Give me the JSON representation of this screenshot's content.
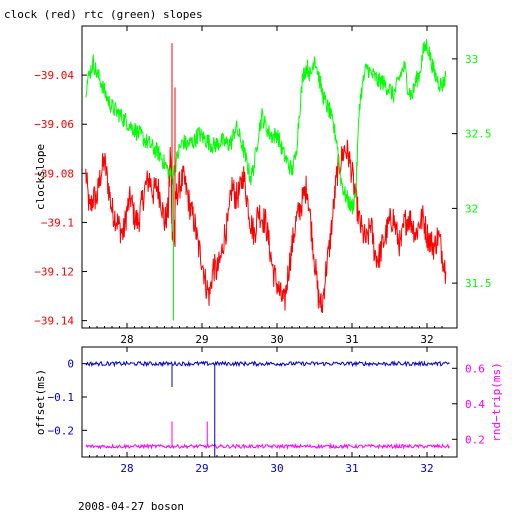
{
  "page": {
    "title": "clock (red) rtc (green) slopes",
    "footer": "2008-04-27 boson"
  },
  "colors": {
    "red": "#ff0000",
    "green": "#00ff00",
    "blue": "#0000cc",
    "magenta": "#ff00ff",
    "axis": "#000000"
  },
  "chart_data": [
    {
      "type": "line",
      "title": "clock (red) rtc (green) slopes",
      "ylabel": "clockslope",
      "ylabel_right": "",
      "xlim": [
        27.4,
        32.4
      ],
      "ylim": [
        -39.143,
        -39.02
      ],
      "ylim_right": [
        31.2,
        33.22
      ],
      "x_ticks": [
        28,
        29,
        30,
        31,
        32
      ],
      "x_tick_labels": [
        "28",
        "29",
        "30",
        "31",
        "32"
      ],
      "y_ticks": [
        -39.04,
        -39.06,
        -39.08,
        -39.1,
        -39.12,
        -39.14
      ],
      "y_tick_labels": [
        "−39.04",
        "−39.06",
        "−39.08",
        "−39.1",
        "−39.12",
        "−39.14"
      ],
      "y_right_ticks": [
        33,
        32.5,
        32,
        31.5
      ],
      "y_right_tick_labels": [
        "33",
        "32.5",
        "32",
        "31.5"
      ],
      "series": [
        {
          "axis": "left",
          "color": "#ff0000",
          "x": [
            27.45,
            27.5,
            27.55,
            27.6,
            27.65,
            27.7,
            27.75,
            27.8,
            27.85,
            27.9,
            27.95,
            28.0,
            28.05,
            28.1,
            28.15,
            28.2,
            28.25,
            28.3,
            28.35,
            28.4,
            28.45,
            28.5,
            28.55,
            28.58,
            28.6,
            28.62,
            28.65,
            28.7,
            28.75,
            28.8,
            28.85,
            28.9,
            28.95,
            29.0,
            29.05,
            29.1,
            29.15,
            29.2,
            29.25,
            29.3,
            29.35,
            29.4,
            29.45,
            29.5,
            29.55,
            29.6,
            29.65,
            29.7,
            29.75,
            29.8,
            29.85,
            29.9,
            29.95,
            30.0,
            30.05,
            30.1,
            30.15,
            30.2,
            30.25,
            30.3,
            30.35,
            30.4,
            30.45,
            30.5,
            30.55,
            30.6,
            30.65,
            30.7,
            30.75,
            30.8,
            30.85,
            30.9,
            30.95,
            31.0,
            31.05,
            31.1,
            31.15,
            31.2,
            31.25,
            31.3,
            31.35,
            31.4,
            31.45,
            31.5,
            31.55,
            31.6,
            31.65,
            31.7,
            31.75,
            31.8,
            31.85,
            31.9,
            31.95,
            32.0,
            32.05,
            32.1,
            32.15,
            32.2,
            32.25
          ],
          "y": [
            -39.08,
            -39.095,
            -39.09,
            -39.09,
            -39.08,
            -39.075,
            -39.085,
            -39.095,
            -39.098,
            -39.102,
            -39.105,
            -39.095,
            -39.09,
            -39.098,
            -39.1,
            -39.092,
            -39.085,
            -39.082,
            -39.088,
            -39.085,
            -39.09,
            -39.1,
            -39.095,
            -39.07,
            -39.1,
            -39.11,
            -39.09,
            -39.085,
            -39.082,
            -39.088,
            -39.095,
            -39.1,
            -39.11,
            -39.115,
            -39.125,
            -39.13,
            -39.118,
            -39.12,
            -39.115,
            -39.105,
            -39.1,
            -39.085,
            -39.09,
            -39.088,
            -39.08,
            -39.09,
            -39.1,
            -39.105,
            -39.095,
            -39.098,
            -39.1,
            -39.11,
            -39.12,
            -39.125,
            -39.13,
            -39.133,
            -39.12,
            -39.11,
            -39.1,
            -39.095,
            -39.09,
            -39.085,
            -39.1,
            -39.115,
            -39.13,
            -39.135,
            -39.12,
            -39.11,
            -39.095,
            -39.08,
            -39.075,
            -39.07,
            -39.072,
            -39.08,
            -39.09,
            -39.1,
            -39.105,
            -39.108,
            -39.1,
            -39.112,
            -39.115,
            -39.11,
            -39.105,
            -39.1,
            -39.098,
            -39.105,
            -39.11,
            -39.1,
            -39.098,
            -39.1,
            -39.105,
            -39.1,
            -39.098,
            -39.105,
            -39.108,
            -39.11,
            -39.105,
            -39.112,
            -39.12
          ]
        },
        {
          "axis": "right",
          "color": "#00ff00",
          "x": [
            27.45,
            27.5,
            27.55,
            27.6,
            27.65,
            27.7,
            27.75,
            27.8,
            27.85,
            27.9,
            27.95,
            28.0,
            28.05,
            28.1,
            28.15,
            28.2,
            28.25,
            28.3,
            28.35,
            28.4,
            28.45,
            28.5,
            28.55,
            28.6,
            28.65,
            28.7,
            28.75,
            28.8,
            28.85,
            28.9,
            28.95,
            29.0,
            29.05,
            29.1,
            29.15,
            29.2,
            29.25,
            29.3,
            29.35,
            29.4,
            29.45,
            29.5,
            29.55,
            29.6,
            29.65,
            29.7,
            29.75,
            29.8,
            29.85,
            29.9,
            29.95,
            30.0,
            30.05,
            30.1,
            30.15,
            30.2,
            30.25,
            30.3,
            30.35,
            30.4,
            30.45,
            30.5,
            30.55,
            30.6,
            30.65,
            30.7,
            30.75,
            30.8,
            30.85,
            30.9,
            30.95,
            31.0,
            31.05,
            31.1,
            31.15,
            31.2,
            31.25,
            31.3,
            31.35,
            31.4,
            31.45,
            31.5,
            31.55,
            31.6,
            31.65,
            31.7,
            31.75,
            31.8,
            31.85,
            31.9,
            31.95,
            32.0,
            32.05,
            32.1,
            32.15,
            32.2,
            32.25
          ],
          "y": [
            32.8,
            32.9,
            32.98,
            32.9,
            32.85,
            32.78,
            32.72,
            32.68,
            32.65,
            32.63,
            32.6,
            32.58,
            32.55,
            32.53,
            32.5,
            32.48,
            32.45,
            32.43,
            32.4,
            32.38,
            32.35,
            32.3,
            32.25,
            32.2,
            32.3,
            32.4,
            32.45,
            32.42,
            32.44,
            32.45,
            32.5,
            32.48,
            32.46,
            32.44,
            32.42,
            32.43,
            32.45,
            32.44,
            32.43,
            32.45,
            32.55,
            32.48,
            32.4,
            32.3,
            32.2,
            32.3,
            32.5,
            32.62,
            32.55,
            32.5,
            32.48,
            32.5,
            32.42,
            32.35,
            32.3,
            32.25,
            32.35,
            32.65,
            32.9,
            32.95,
            32.88,
            33.02,
            32.9,
            32.78,
            32.7,
            32.65,
            32.55,
            32.45,
            32.2,
            32.1,
            32.05,
            32.0,
            32.1,
            32.7,
            32.85,
            32.95,
            32.9,
            32.88,
            32.85,
            32.85,
            32.82,
            32.8,
            32.75,
            32.82,
            32.9,
            32.95,
            32.8,
            32.75,
            32.85,
            32.9,
            33.05,
            33.1,
            33.0,
            32.9,
            32.85,
            32.82,
            32.88
          ]
        }
      ],
      "spikes": [
        {
          "series": "red",
          "x": 28.6,
          "y_from": -39.1,
          "y_to": -39.027
        },
        {
          "series": "red",
          "x": 28.64,
          "y_from": -39.11,
          "y_to": -39.045
        },
        {
          "series": "green",
          "x": 28.62,
          "y_from": 32.2,
          "y_to": 31.25
        }
      ]
    },
    {
      "type": "line",
      "ylabel": "offset(ms)",
      "ylabel_right": "rnd−trip(ms)",
      "xlim": [
        27.4,
        32.4
      ],
      "ylim": [
        -0.28,
        0.05
      ],
      "ylim_right": [
        0.1,
        0.72
      ],
      "x_ticks": [
        28,
        29,
        30,
        31,
        32
      ],
      "x_tick_labels": [
        "28",
        "29",
        "30",
        "31",
        "32"
      ],
      "y_ticks": [
        0,
        -0.1,
        -0.2
      ],
      "y_tick_labels": [
        "0",
        "−0.1",
        "−0.2"
      ],
      "y_right_ticks": [
        0.6,
        0.4,
        0.2
      ],
      "y_right_tick_labels": [
        "0.6",
        "0.4",
        "0.2"
      ],
      "series": [
        {
          "axis": "left",
          "color": "#0000cc",
          "x": [
            27.45,
            32.3
          ],
          "y": [
            0.0,
            0.0
          ]
        },
        {
          "axis": "right",
          "color": "#ff00ff",
          "x": [
            27.45,
            32.3
          ],
          "y": [
            0.16,
            0.16
          ]
        }
      ],
      "spikes": [
        {
          "series": "blue",
          "x": 29.17,
          "y_from": 0.0,
          "y_to": -0.28
        },
        {
          "series": "blue",
          "x": 28.6,
          "y_from": 0.0,
          "y_to": -0.07
        },
        {
          "series": "magenta",
          "x": 28.6,
          "y_from": 0.16,
          "y_to": 0.3
        },
        {
          "series": "magenta",
          "x": 29.07,
          "y_from": 0.16,
          "y_to": 0.3
        }
      ]
    }
  ]
}
